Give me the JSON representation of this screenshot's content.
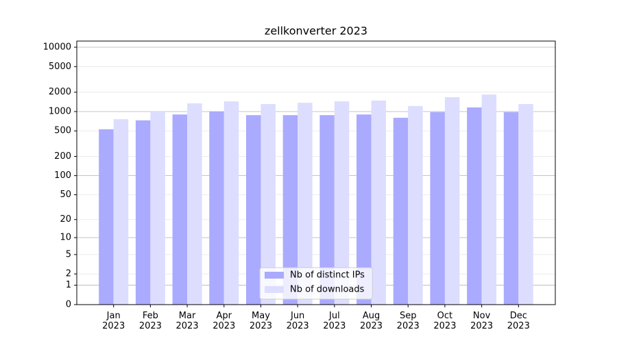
{
  "chart_data": {
    "type": "bar",
    "title": "zellkonverter 2023",
    "categories": [
      "Jan\n2023",
      "Feb\n2023",
      "Mar\n2023",
      "Apr\n2023",
      "May\n2023",
      "Jun\n2023",
      "Jul\n2023",
      "Aug\n2023",
      "Sep\n2023",
      "Oct\n2023",
      "Nov\n2023",
      "Dec\n2023"
    ],
    "series": [
      {
        "name": "Nb of distinct IPs",
        "color": "#aaaaff",
        "values": [
          530,
          730,
          900,
          1000,
          880,
          880,
          880,
          900,
          800,
          980,
          1160,
          980
        ]
      },
      {
        "name": "Nb of downloads",
        "color": "#ddddff",
        "values": [
          760,
          1000,
          1340,
          1440,
          1310,
          1370,
          1440,
          1480,
          1220,
          1670,
          1840,
          1310
        ]
      }
    ],
    "yscale": "symlog",
    "ylim": [
      0,
      12470
    ],
    "yticks": [
      0,
      1,
      2,
      5,
      10,
      20,
      50,
      100,
      200,
      500,
      1000,
      2000,
      5000,
      10000
    ],
    "grid": true,
    "legend": "lower center"
  }
}
